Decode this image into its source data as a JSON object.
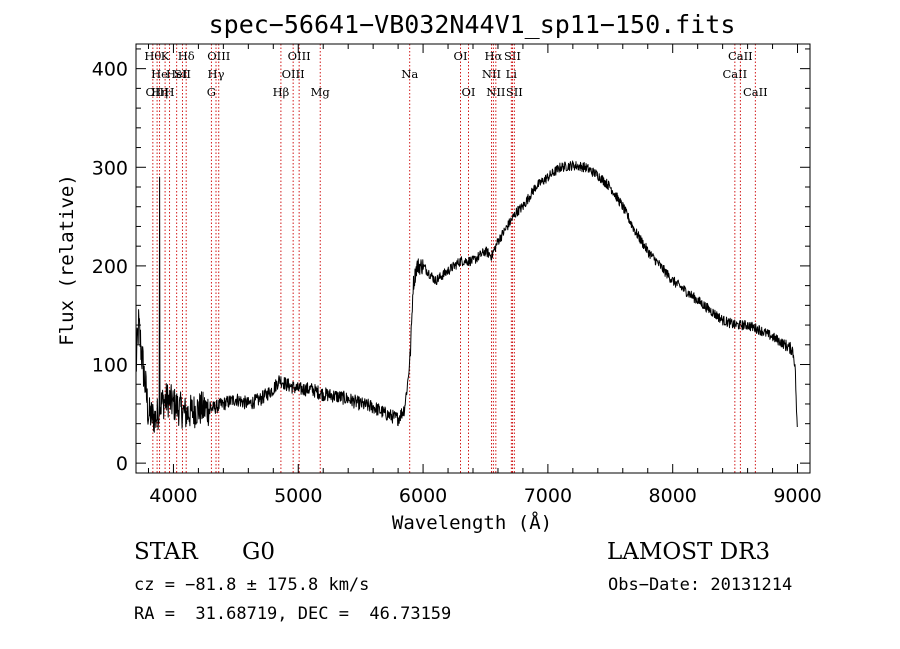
{
  "chart_data": {
    "type": "line",
    "title": "spec−56641−VB032N44V1_sp11−150.fits",
    "xlabel": "Wavelength (Å)",
    "ylabel": "Flux (relative)",
    "xlim": [
      3700,
      9100
    ],
    "ylim": [
      -10,
      425
    ],
    "x_ticks": [
      4000,
      5000,
      6000,
      7000,
      8000,
      9000
    ],
    "y_ticks": [
      0,
      100,
      200,
      300,
      400
    ],
    "line_color": "#000000",
    "marker_color": "#cc0000",
    "continuum": {
      "x": [
        3700,
        3720,
        3760,
        3800,
        3860,
        3900,
        3950,
        4000,
        4100,
        4200,
        4300,
        4400,
        4500,
        4600,
        4700,
        4800,
        4850,
        4900,
        5000,
        5100,
        5200,
        5300,
        5400,
        5500,
        5600,
        5700,
        5800,
        5850,
        5880,
        5900,
        5920,
        5950,
        6000,
        6100,
        6200,
        6300,
        6400,
        6500,
        6550,
        6600,
        6650,
        6700,
        6750,
        6800,
        6900,
        7000,
        7100,
        7200,
        7300,
        7400,
        7500,
        7600,
        7700,
        7800,
        7900,
        8000,
        8100,
        8200,
        8300,
        8400,
        8500,
        8600,
        8700,
        8800,
        8900,
        8960,
        8980,
        9000
      ],
      "y": [
        95,
        140,
        95,
        50,
        45,
        60,
        65,
        60,
        50,
        55,
        55,
        60,
        65,
        60,
        65,
        75,
        85,
        80,
        75,
        75,
        70,
        68,
        65,
        60,
        57,
        50,
        45,
        55,
        85,
        115,
        180,
        200,
        200,
        185,
        195,
        205,
        205,
        215,
        210,
        225,
        235,
        245,
        255,
        260,
        280,
        290,
        300,
        302,
        300,
        292,
        280,
        260,
        235,
        215,
        200,
        185,
        175,
        165,
        155,
        145,
        140,
        140,
        135,
        128,
        120,
        115,
        100,
        25
      ]
    },
    "spike": {
      "x": 3890,
      "y": 290
    },
    "line_markers": [
      {
        "x": 3835,
        "labels": [
          "Hθ",
          "",
          ""
        ]
      },
      {
        "x": 3869,
        "labels": [
          "",
          "",
          "OIII"
        ]
      },
      {
        "x": 3889,
        "labels": [
          "",
          "He",
          "Hη"
        ]
      },
      {
        "x": 3933,
        "labels": [
          "K",
          "",
          ""
        ]
      },
      {
        "x": 3969,
        "labels": [
          "",
          "",
          "H"
        ]
      },
      {
        "x": 4026,
        "labels": [
          "",
          "HeI",
          ""
        ]
      },
      {
        "x": 4072,
        "labels": [
          "",
          "SII",
          ""
        ]
      },
      {
        "x": 4102,
        "labels": [
          "Hδ",
          "",
          ""
        ]
      },
      {
        "x": 4304,
        "labels": [
          "",
          "",
          "G"
        ]
      },
      {
        "x": 4341,
        "labels": [
          "",
          "Hγ",
          ""
        ]
      },
      {
        "x": 4363,
        "labels": [
          "OIII",
          "",
          ""
        ]
      },
      {
        "x": 4861,
        "labels": [
          "",
          "",
          "Hβ"
        ]
      },
      {
        "x": 4959,
        "labels": [
          "",
          "OIII",
          ""
        ]
      },
      {
        "x": 5007,
        "labels": [
          "OIII",
          "",
          ""
        ]
      },
      {
        "x": 5176,
        "labels": [
          "",
          "",
          "Mg"
        ]
      },
      {
        "x": 5893,
        "labels": [
          "",
          "Na",
          ""
        ]
      },
      {
        "x": 6300,
        "labels": [
          "OI",
          "",
          ""
        ]
      },
      {
        "x": 6364,
        "labels": [
          "",
          "",
          "OI"
        ]
      },
      {
        "x": 6548,
        "labels": [
          "",
          "NII",
          ""
        ]
      },
      {
        "x": 6563,
        "labels": [
          "Hα",
          "",
          ""
        ]
      },
      {
        "x": 6583,
        "labels": [
          "",
          "",
          "NII"
        ]
      },
      {
        "x": 6707,
        "labels": [
          "",
          "Li",
          ""
        ]
      },
      {
        "x": 6716,
        "labels": [
          "SII",
          "",
          ""
        ]
      },
      {
        "x": 6731,
        "labels": [
          "",
          "",
          "SII"
        ]
      },
      {
        "x": 8498,
        "labels": [
          "",
          "CaII",
          ""
        ]
      },
      {
        "x": 8542,
        "labels": [
          "CaII",
          "",
          ""
        ]
      },
      {
        "x": 8662,
        "labels": [
          "",
          "",
          "CaII"
        ]
      }
    ]
  },
  "info": {
    "class": "STAR",
    "subclass": "G0",
    "survey": "LAMOST DR3",
    "cz": "cz = −81.8 ± 175.8 km/s",
    "obs_date": "Obs−Date: 20131214",
    "radec": "RA =  31.68719, DEC =  46.73159"
  }
}
